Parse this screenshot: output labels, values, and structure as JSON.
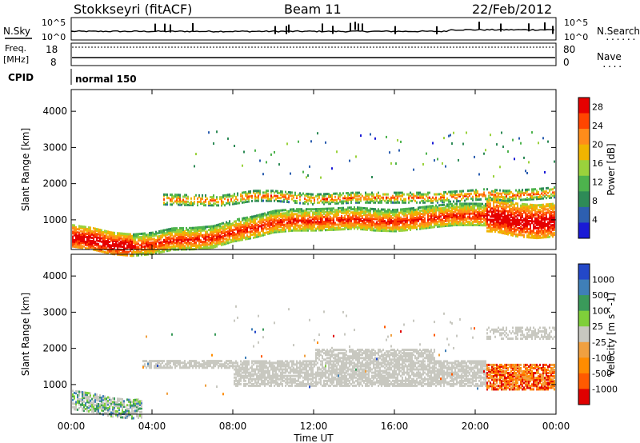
{
  "header": {
    "station": "Stokkseyri (fitACF)",
    "beam": "Beam 11",
    "date": "22/Feb/2012"
  },
  "nsky_panel": {
    "left_label": "N.Sky",
    "right_label": "N.Search",
    "right_marker": "......",
    "left_ticks": [
      "10^5",
      "10^0"
    ],
    "right_ticks": [
      "10^5",
      "10^0"
    ]
  },
  "freq_panel": {
    "left_label_1": "Freq.",
    "left_label_2": "[MHz]",
    "right_label": "Nave",
    "right_marker": "....",
    "left_ticks": [
      "18",
      "8"
    ],
    "right_ticks": [
      "80",
      "0"
    ]
  },
  "cpid": {
    "label": "CPID",
    "value": "normal 150"
  },
  "colors": {
    "power_scale": [
      "#1a1ad6",
      "#2d5fb0",
      "#2e8b57",
      "#4db34d",
      "#9ad23c",
      "#f0b400",
      "#ff8c1a",
      "#ff4500",
      "#e60000"
    ],
    "velocity_scale": [
      "#2348c8",
      "#3f7fb8",
      "#3a9a5a",
      "#7fcf3a",
      "#c8c8c0",
      "#f0a040",
      "#ff8c00",
      "#ff5a00",
      "#e00000"
    ],
    "ground_scatter": "#c8c8c0"
  },
  "chart_data": [
    {
      "type": "heatmap",
      "title": "",
      "xlabel": "Time UT",
      "ylabel": "Slant Range [km]",
      "x_ticks": [
        "00:00",
        "04:00",
        "08:00",
        "12:00",
        "16:00",
        "20:00",
        "00:00"
      ],
      "y_ticks": [
        "1000",
        "2000",
        "3000",
        "4000"
      ],
      "xlim_hours": [
        0,
        24
      ],
      "ylim_km": [
        180,
        4600
      ],
      "colorbar": {
        "label": "Power [dB]",
        "ticks": [
          "4",
          "8",
          "12",
          "16",
          "20",
          "24",
          "28"
        ],
        "range": [
          0,
          30
        ]
      },
      "bands": [
        {
          "name": "main",
          "t": [
            0,
            1,
            2,
            3,
            4,
            5,
            6,
            7,
            8,
            9,
            10,
            11,
            12,
            13,
            14,
            15,
            16,
            17,
            18,
            19,
            20,
            21,
            22,
            23,
            24
          ],
          "range_km": [
            560,
            480,
            350,
            300,
            350,
            470,
            480,
            530,
            700,
            800,
            950,
            1000,
            1000,
            1020,
            1050,
            1000,
            980,
            1030,
            1100,
            1150,
            1150,
            1130,
            1000,
            950,
            1000
          ]
        },
        {
          "name": "upper",
          "t": [
            4.5,
            6,
            7.5,
            9,
            10,
            12,
            14,
            16,
            18,
            19.5,
            20.5,
            21.5,
            23,
            24
          ],
          "range_km": [
            1600,
            1580,
            1570,
            1700,
            1700,
            1600,
            1650,
            1650,
            1650,
            1700,
            1750,
            1700,
            1750,
            1800
          ]
        }
      ],
      "peak_power_db": 30
    },
    {
      "type": "heatmap",
      "title": "",
      "xlabel": "Time UT",
      "ylabel": "Slant Range [km]",
      "x_ticks": [
        "00:00",
        "04:00",
        "08:00",
        "12:00",
        "16:00",
        "20:00",
        "00:00"
      ],
      "y_ticks": [
        "1000",
        "2000",
        "3000",
        "4000"
      ],
      "xlim_hours": [
        0,
        24
      ],
      "ylim_km": [
        180,
        4600
      ],
      "colorbar": {
        "label": "Velocity [m s^-1]",
        "ticks": [
          "1000",
          "500",
          "100",
          "25",
          "-25",
          "-100",
          "-500",
          "-1000"
        ],
        "range": [
          -1000,
          1000
        ]
      },
      "ground_scatter_band_km": [
        1000,
        1700
      ],
      "negative_velocity_region": {
        "t": [
          20.5,
          24
        ],
        "range_km": [
          900,
          1600
        ]
      }
    }
  ]
}
